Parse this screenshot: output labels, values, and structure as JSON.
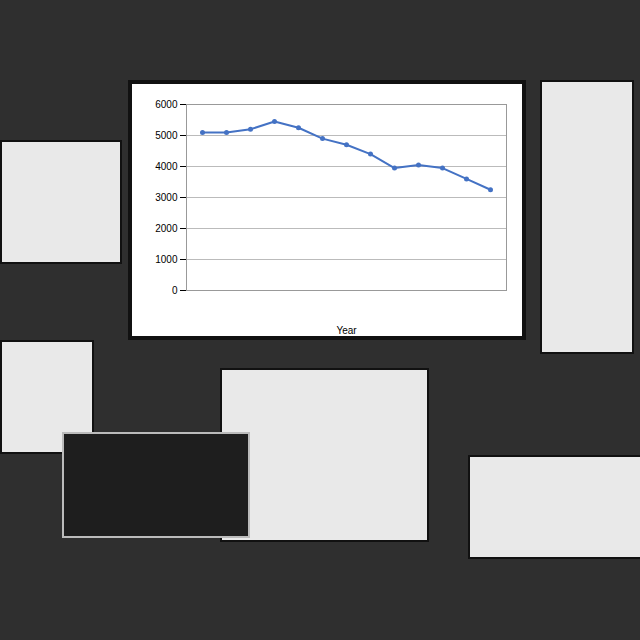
{
  "chart_data": {
    "type": "line",
    "x_label": "Year",
    "categories": [
      null,
      null,
      null,
      null,
      null,
      null,
      null,
      null,
      null,
      null,
      null,
      null,
      null
    ],
    "values": [
      5100,
      5100,
      5200,
      5450,
      5250,
      4900,
      4700,
      4400,
      3950,
      4050,
      3950,
      3600,
      3250
    ],
    "color": "#4472c4",
    "marker": "circle",
    "ylim": [
      0,
      6000
    ],
    "yticks": [
      0,
      1000,
      2000,
      3000,
      4000,
      5000,
      6000
    ],
    "grid": true,
    "tick_labels": "y"
  }
}
